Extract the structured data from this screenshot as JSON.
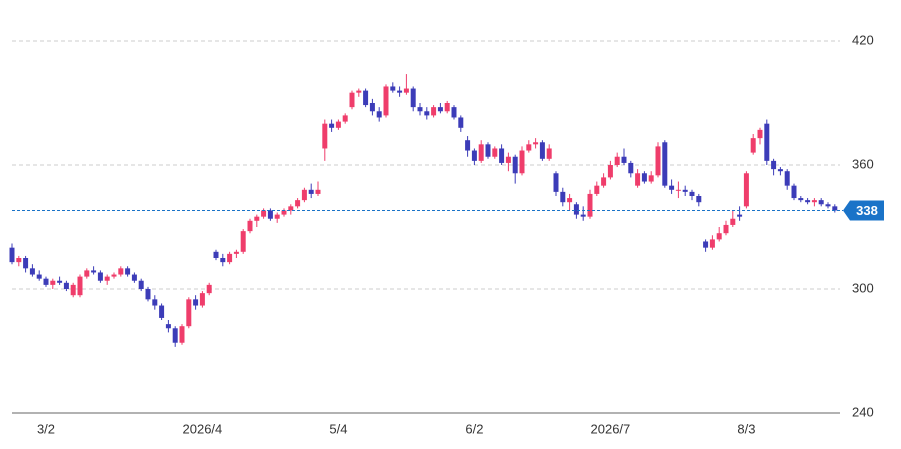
{
  "chart_data": {
    "type": "candlestick",
    "categories": [
      null,
      null,
      null,
      null,
      null,
      "3/2",
      null,
      null,
      null,
      null,
      null,
      null,
      null,
      null,
      null,
      null,
      null,
      null,
      null,
      null,
      null,
      null,
      null,
      null,
      null,
      null,
      null,
      null,
      "2026/4",
      null,
      null,
      null,
      null,
      null,
      null,
      null,
      null,
      null,
      null,
      null,
      null,
      null,
      null,
      null,
      null,
      null,
      null,
      null,
      "5/4",
      null,
      null,
      null,
      null,
      null,
      null,
      null,
      null,
      null,
      null,
      null,
      null,
      null,
      null,
      null,
      null,
      null,
      null,
      null,
      "6/2",
      null,
      null,
      null,
      null,
      null,
      null,
      null,
      null,
      null,
      null,
      null,
      null,
      null,
      null,
      null,
      null,
      null,
      null,
      null,
      "2026/7",
      null,
      null,
      null,
      null,
      null,
      null,
      null,
      null,
      null,
      null,
      null,
      null,
      null,
      null,
      null,
      null,
      null,
      null,
      null,
      "8/3",
      null,
      null,
      null,
      null,
      null,
      null,
      null,
      null,
      null,
      null,
      null,
      null,
      null
    ],
    "open": [
      320,
      313,
      315,
      310,
      307,
      305,
      302,
      304,
      303,
      297,
      297,
      306,
      309,
      308,
      304,
      306,
      307,
      310,
      307,
      304,
      300,
      295,
      292,
      283,
      281,
      274,
      282,
      295,
      292,
      298,
      318,
      315,
      313,
      317,
      318,
      328,
      333,
      335,
      338,
      334,
      336,
      338,
      340,
      343,
      348,
      346,
      368,
      380,
      378,
      381,
      388,
      395,
      396,
      390,
      386,
      384,
      398,
      396,
      395,
      397,
      388,
      386,
      384,
      388,
      386,
      388,
      383,
      372,
      367,
      362,
      370,
      364,
      368,
      361,
      364,
      356,
      367,
      370,
      371,
      363,
      356,
      347,
      342,
      341,
      336,
      335,
      346,
      350,
      354,
      360,
      364,
      361,
      350,
      356,
      352,
      355,
      371,
      350,
      348,
      348,
      347,
      345,
      323,
      320,
      324,
      327,
      331,
      336,
      340,
      366,
      373,
      380,
      362,
      358,
      357,
      350,
      344,
      343,
      342,
      343,
      341,
      340
    ],
    "high": [
      322,
      316,
      316,
      312,
      309,
      306,
      305,
      306,
      304,
      303,
      307,
      310,
      311,
      309,
      307,
      308,
      311,
      311,
      308,
      305,
      301,
      297,
      293,
      285,
      282,
      283,
      296,
      297,
      299,
      303,
      319,
      317,
      318,
      319,
      329,
      334,
      336,
      339,
      339,
      337,
      339,
      341,
      344,
      349,
      351,
      352,
      382,
      382,
      382,
      385,
      396,
      397,
      397,
      392,
      388,
      399,
      400,
      398,
      404,
      398,
      390,
      388,
      389,
      390,
      391,
      389,
      384,
      374,
      368,
      372,
      371,
      369,
      370,
      366,
      365,
      369,
      372,
      373,
      372,
      370,
      357,
      349,
      346,
      342,
      340,
      348,
      352,
      356,
      362,
      366,
      368,
      362,
      358,
      357,
      357,
      371,
      372,
      353,
      352,
      350,
      348,
      346,
      324,
      326,
      330,
      333,
      338,
      340,
      357,
      375,
      378,
      382,
      363,
      359,
      358,
      351,
      345,
      344,
      344,
      344,
      342,
      341
    ],
    "low": [
      312,
      311,
      308,
      306,
      304,
      301,
      300,
      302,
      299,
      296,
      296,
      305,
      307,
      303,
      302,
      305,
      306,
      306,
      303,
      299,
      294,
      290,
      285,
      279,
      272,
      273,
      281,
      290,
      291,
      297,
      314,
      311,
      312,
      315,
      317,
      327,
      330,
      334,
      333,
      332,
      335,
      336,
      339,
      342,
      344,
      345,
      362,
      376,
      377,
      380,
      387,
      393,
      388,
      384,
      381,
      383,
      395,
      393,
      394,
      386,
      384,
      382,
      383,
      385,
      385,
      382,
      376,
      364,
      360,
      361,
      363,
      363,
      360,
      357,
      351,
      355,
      366,
      368,
      362,
      362,
      345,
      340,
      338,
      334,
      333,
      334,
      345,
      349,
      353,
      359,
      360,
      354,
      349,
      351,
      351,
      354,
      349,
      346,
      344,
      345,
      343,
      340,
      318,
      319,
      323,
      326,
      330,
      333,
      339,
      365,
      370,
      360,
      355,
      355,
      348,
      343,
      342,
      341,
      340,
      340,
      339,
      337
    ],
    "close": [
      313,
      315,
      310,
      307,
      305,
      302,
      304,
      303,
      300,
      302,
      306,
      309,
      308,
      304,
      306,
      307,
      310,
      307,
      304,
      300,
      295,
      292,
      286,
      281,
      274,
      282,
      295,
      292,
      298,
      302,
      315,
      313,
      317,
      318,
      328,
      333,
      335,
      338,
      334,
      336,
      338,
      340,
      343,
      348,
      346,
      348,
      380,
      378,
      381,
      384,
      395,
      396,
      389,
      386,
      383,
      398,
      396,
      395,
      397,
      388,
      386,
      384,
      388,
      386,
      390,
      383,
      378,
      367,
      362,
      370,
      364,
      368,
      361,
      364,
      356,
      367,
      370,
      371,
      363,
      368,
      347,
      342,
      344,
      336,
      335,
      346,
      350,
      354,
      360,
      364,
      361,
      356,
      356,
      352,
      355,
      369,
      350,
      348,
      348,
      347,
      345,
      342,
      320,
      324,
      327,
      331,
      334,
      335,
      356,
      373,
      377,
      362,
      358,
      357,
      350,
      344,
      343,
      342,
      343,
      341,
      340,
      338
    ],
    "up_color": "#ef3d6b",
    "down_color": "#3c3cb8",
    "ylim": [
      240,
      420
    ],
    "yticks": [
      240,
      300,
      360,
      420
    ],
    "grid": true,
    "last_price": 338,
    "last_price_color": "#1a73c8"
  }
}
